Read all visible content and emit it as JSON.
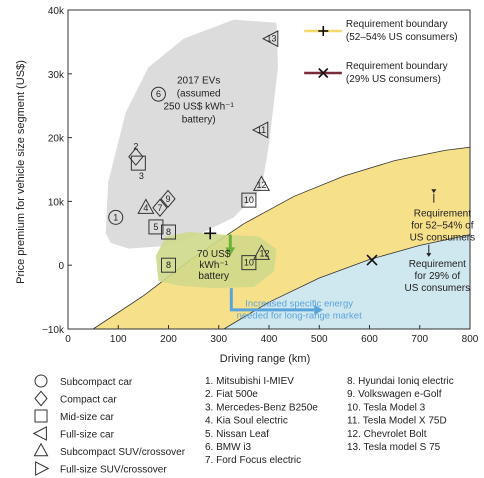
{
  "chart_data": {
    "type": "scatter",
    "xlabel": "Driving range (km)",
    "ylabel": "Price premium for vehicle size segment (US$)",
    "xlim": [
      0,
      800
    ],
    "ylim": [
      -10000,
      40000
    ],
    "x_ticks": [
      "0",
      "100",
      "200",
      "300",
      "400",
      "500",
      "600",
      "700",
      "800"
    ],
    "y_ticks": [
      "−10k",
      "0",
      "10k",
      "20k",
      "30k",
      "40k"
    ],
    "legend_boundaries": [
      {
        "symbol": "plus",
        "color": "#f5d86a",
        "line1": "Requirement boundary",
        "line2": "(52–54% US consumers)"
      },
      {
        "symbol": "x",
        "color": "#7a2a3a",
        "line1": "Requirement boundary",
        "line2": "(29% US consumers)"
      }
    ],
    "annotations": {
      "evs_2017": [
        "2017 EVs",
        "(assumed",
        "250 US$ kWh⁻¹",
        "battery)"
      ],
      "battery_70": [
        "70 US$",
        "kWh⁻¹",
        "battery"
      ],
      "req_52": [
        "Requirement",
        "for 52–54% of",
        "US consumers"
      ],
      "req_29": [
        "Requirement",
        "for 29% of",
        "US consumers"
      ],
      "energy": [
        "Increased specific energy",
        "needed for long-range market"
      ]
    },
    "boundary_points": [
      {
        "type": "plus",
        "x": 283,
        "y": 5000
      },
      {
        "type": "x",
        "x": 605,
        "y": 800
      }
    ],
    "vehicles_2017": [
      {
        "id": "1",
        "shape": "circle",
        "x": 95,
        "y": 7500
      },
      {
        "id": "2",
        "shape": "diamond",
        "x": 135,
        "y": 17000
      },
      {
        "id": "3",
        "shape": "square",
        "x": 140,
        "y": 16000
      },
      {
        "id": "4",
        "shape": "triangle-up",
        "x": 155,
        "y": 9000
      },
      {
        "id": "5",
        "shape": "square",
        "x": 175,
        "y": 6000
      },
      {
        "id": "6",
        "shape": "circle",
        "x": 180,
        "y": 26800
      },
      {
        "id": "7",
        "shape": "diamond",
        "x": 183,
        "y": 9000
      },
      {
        "id": "8",
        "shape": "square",
        "x": 200,
        "y": 5200
      },
      {
        "id": "9",
        "shape": "diamond",
        "x": 199,
        "y": 10400
      },
      {
        "id": "10",
        "shape": "square",
        "x": 360,
        "y": 10200
      },
      {
        "id": "11",
        "shape": "triangle-left",
        "x": 385,
        "y": 21200
      },
      {
        "id": "12",
        "shape": "triangle-up",
        "x": 385,
        "y": 12600
      },
      {
        "id": "13",
        "shape": "triangle-left",
        "x": 405,
        "y": 35500
      }
    ],
    "vehicles_70": [
      {
        "id": "8",
        "shape": "square",
        "x": 200,
        "y": 0
      },
      {
        "id": "10",
        "shape": "square",
        "x": 360,
        "y": 400
      },
      {
        "id": "12",
        "shape": "triangle-up",
        "x": 385,
        "y": 1800
      }
    ],
    "shape_legend": [
      {
        "shape": "circle",
        "label": "Subcompact car"
      },
      {
        "shape": "diamond",
        "label": "Compact car"
      },
      {
        "shape": "square",
        "label": "Mid-size car"
      },
      {
        "shape": "triangle-left",
        "label": "Full-size car"
      },
      {
        "shape": "triangle-up",
        "label": "Subcompact SUV/crossover"
      },
      {
        "shape": "triangle-right",
        "label": "Full-size SUV/crossover"
      }
    ],
    "models_col1": [
      "1. Mitsubishi I-MIEV",
      "2. Fiat 500e",
      "3. Mercedes-Benz B250e",
      "4. Kia Soul electric",
      "5. Nissan Leaf",
      "6. BMW i3",
      "7. Ford Focus electric"
    ],
    "models_col2": [
      "8. Hyundai Ioniq electric",
      "9. Volkswagen e-Golf",
      "10. Tesla Model 3",
      "11. Tesla Model X 75D",
      "12. Chevrolet Bolt",
      "13. Tesla model S 75"
    ],
    "colors": {
      "yellow_region": "#f7e08a",
      "blue_region": "#cfe7ee",
      "grey_region": "#dcdcdc",
      "green_region": "#cfd98a",
      "green_arrow": "#6ab23a",
      "blue_arrow": "#5aa4dc",
      "x_marker": "#7a2a3a"
    }
  }
}
